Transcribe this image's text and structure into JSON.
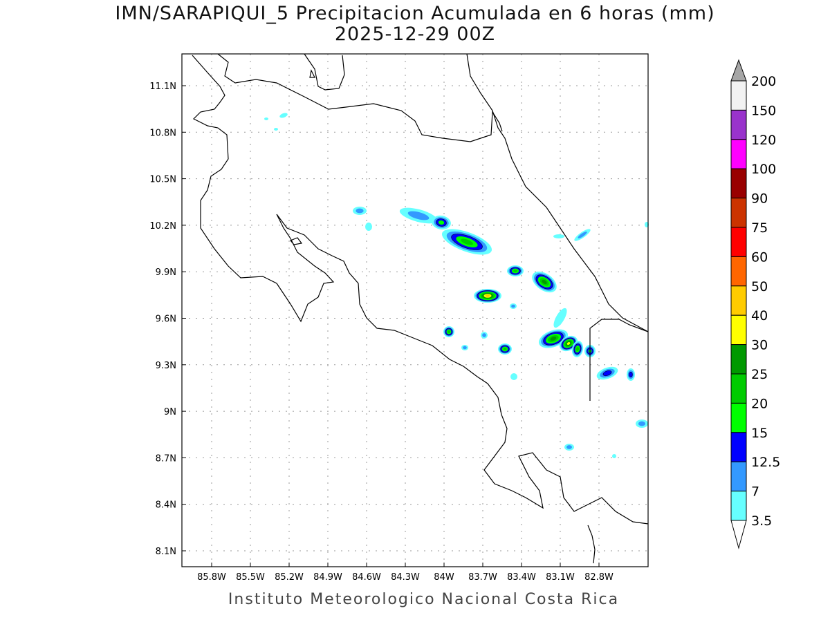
{
  "title": {
    "line1": "IMN/SARAPIQUI_5 Precipitacion Acumulada en 6 horas (mm)",
    "line2": "2025-12-29 00Z"
  },
  "footer": "Instituto Meteorologico Nacional Costa Rica",
  "map": {
    "lat_ticks": [
      "11.1N",
      "10.8N",
      "10.5N",
      "10.2N",
      "9.9N",
      "9.6N",
      "9.3N",
      "9N",
      "8.7N",
      "8.4N",
      "8.1N"
    ],
    "lon_ticks": [
      "85.8W",
      "85.5W",
      "85.2W",
      "84.9W",
      "84.6W",
      "84.3W",
      "84W",
      "83.7W",
      "83.4W",
      "83.1W",
      "82.8W"
    ]
  },
  "colorbar": {
    "levels": [
      "3.5",
      "7",
      "12.5",
      "15",
      "20",
      "25",
      "30",
      "40",
      "50",
      "60",
      "75",
      "90",
      "100",
      "120",
      "150",
      "200"
    ],
    "colors": [
      "#66ffff",
      "#3399ff",
      "#0000ff",
      "#00ff00",
      "#00cc00",
      "#009900",
      "#ffff00",
      "#ffcc00",
      "#ff6600",
      "#ff0000",
      "#cc3300",
      "#990000",
      "#ff00ff",
      "#9933cc",
      "#f2f2f2"
    ],
    "under_color": "#ffffff",
    "over_color": "#a6a6a6"
  }
}
